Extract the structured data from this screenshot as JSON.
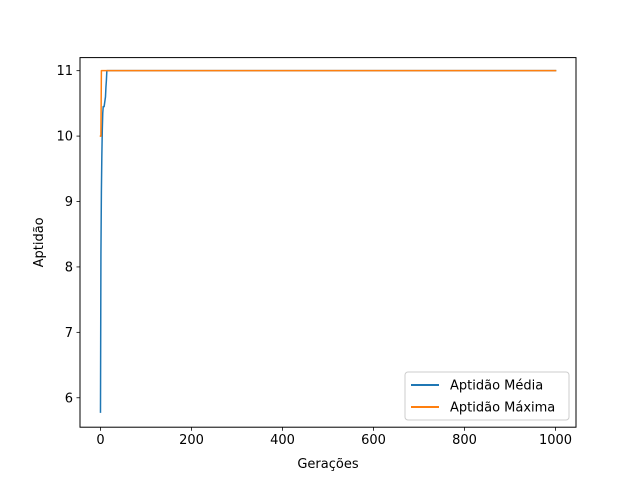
{
  "chart_data": {
    "type": "line",
    "title": "",
    "xlabel": "Gerações",
    "ylabel": "Aptidão",
    "xlim": [
      -45,
      1045
    ],
    "ylim": [
      5.55,
      11.2
    ],
    "xticks": [
      0,
      200,
      400,
      600,
      800,
      1000
    ],
    "yticks": [
      6,
      7,
      8,
      9,
      10,
      11
    ],
    "grid": false,
    "legend_position": "lower-right",
    "series": [
      {
        "name": "Aptidão Média",
        "color": "#1f77b4",
        "points": [
          [
            0,
            5.78
          ],
          [
            1,
            8.2
          ],
          [
            2,
            9.15
          ],
          [
            3,
            9.7
          ],
          [
            4,
            10.1
          ],
          [
            5,
            10.35
          ],
          [
            6,
            10.45
          ],
          [
            8,
            10.45
          ],
          [
            9,
            10.5
          ],
          [
            10,
            10.55
          ],
          [
            11,
            10.6
          ],
          [
            12,
            10.75
          ],
          [
            13,
            10.85
          ],
          [
            14,
            11.0
          ],
          [
            15,
            11.0
          ],
          [
            1000,
            11.0
          ]
        ]
      },
      {
        "name": "Aptidão Máxima",
        "color": "#ff7f0e",
        "points": [
          [
            0,
            10.0
          ],
          [
            1,
            10.0
          ],
          [
            2,
            11.0
          ],
          [
            1000,
            11.0
          ]
        ]
      }
    ]
  }
}
